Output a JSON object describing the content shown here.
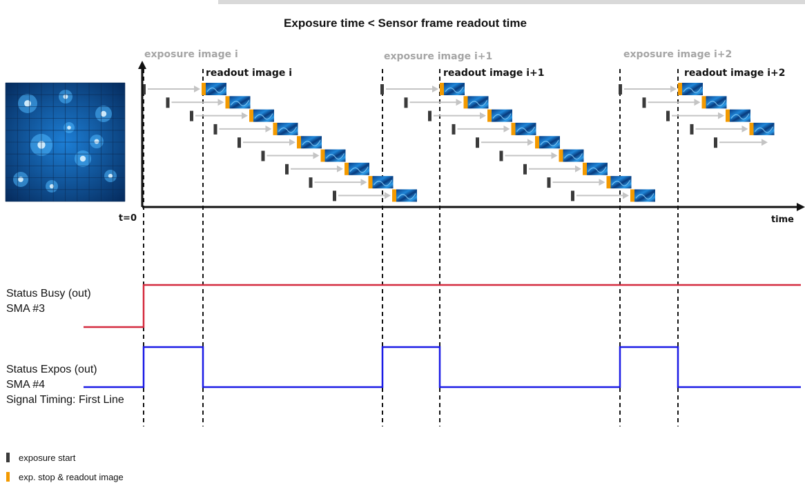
{
  "title": "Exposure time < Sensor frame readout time",
  "colors": {
    "exposure_start": "#3a3a3a",
    "readout": "#f39a00",
    "arrow": "#c4c4c4",
    "busy": "#d42a3e",
    "expos": "#1a1ae6",
    "tile": "#1566b5",
    "tile_dark": "#062a60"
  },
  "axis": {
    "t0_label": "t=0",
    "time_label": "time"
  },
  "frames": [
    {
      "exposure_label": "exposure image i",
      "readout_label": "readout image i"
    },
    {
      "exposure_label": "exposure image i+1",
      "readout_label": "readout image i+1"
    },
    {
      "exposure_label": "exposure image i+2",
      "readout_label": "readout image i+2"
    }
  ],
  "signals": {
    "busy": {
      "lines": [
        "Status Busy (out)",
        "SMA #3"
      ]
    },
    "expos": {
      "lines": [
        "Status Expos (out)",
        "SMA #4",
        "Signal Timing: First Line"
      ]
    }
  },
  "legend": {
    "exposure_start": "exposure start",
    "readout": "exp. stop & readout image"
  },
  "sensor_image": {
    "icon": "sensor-image-icon"
  }
}
